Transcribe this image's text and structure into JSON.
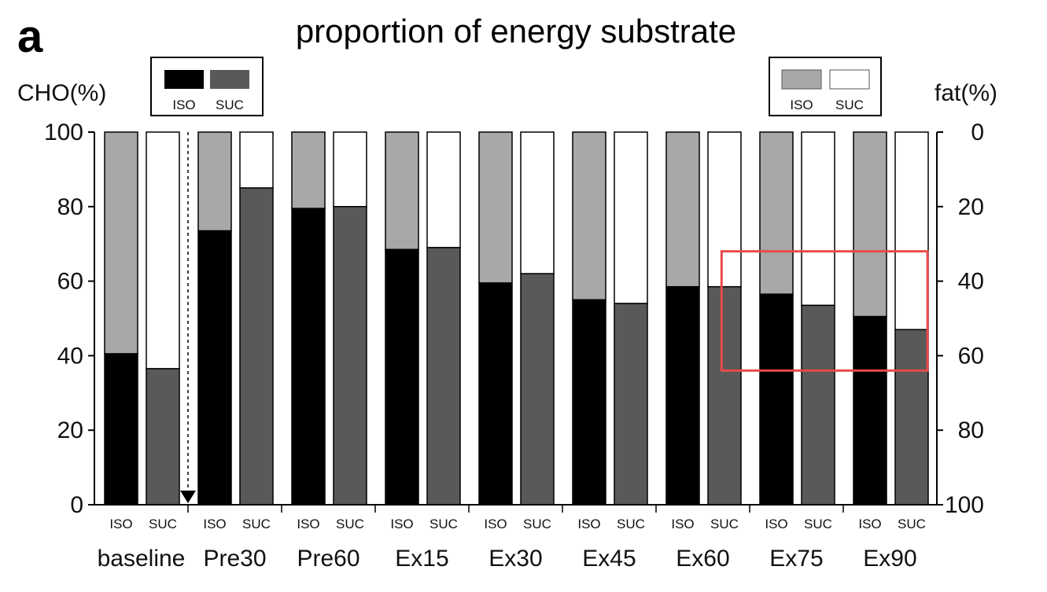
{
  "panel_label": "a",
  "chart_data": {
    "type": "bar",
    "title": "proportion of energy substrate",
    "ylabel_left": "CHO(%)",
    "ylabel_right": "fat(%)",
    "ylim_left": [
      0,
      100
    ],
    "ylim_right": [
      100,
      0
    ],
    "left_ticks": [
      "0",
      "20",
      "40",
      "60",
      "80",
      "100"
    ],
    "right_ticks": [
      "100",
      "80",
      "60",
      "40",
      "20",
      "0"
    ],
    "legend_left": {
      "items": [
        {
          "label": "ISO",
          "color": "#000000"
        },
        {
          "label": "SUC",
          "color": "#595959"
        }
      ]
    },
    "legend_right": {
      "items": [
        {
          "label": "ISO",
          "color": "#a8a8a8"
        },
        {
          "label": "SUC",
          "color": "#ffffff"
        }
      ]
    },
    "groups": [
      "baseline",
      "Pre30",
      "Pre60",
      "Ex15",
      "Ex30",
      "Ex45",
      "Ex60",
      "Ex75",
      "Ex90"
    ],
    "bar_labels": [
      "ISO",
      "SUC"
    ],
    "series": [
      {
        "name": "ISO CHO(%)",
        "values": [
          40.5,
          73.5,
          79.5,
          68.5,
          59.5,
          55,
          58.5,
          56.5,
          50.5
        ]
      },
      {
        "name": "SUC CHO(%)",
        "values": [
          36.5,
          85,
          80,
          69,
          62,
          54,
          58.5,
          53.5,
          47
        ]
      }
    ],
    "colors": {
      "iso_cho": "#000000",
      "suc_cho": "#595959",
      "iso_fat": "#a8a8a8",
      "suc_fat": "#ffffff",
      "highlight": "#e84a4a"
    },
    "annotations": [
      "dashed arrow from baseline to Pre30",
      "red highlight box over Ex75 and Ex90 at 35-65% fat"
    ]
  }
}
